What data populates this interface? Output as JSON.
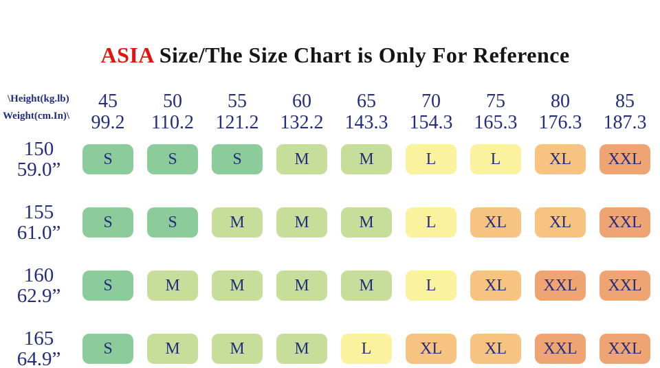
{
  "title": {
    "brand": "ASIA",
    "rest": " Size/The Size Chart is Only For Reference",
    "brand_color": "#e2140e",
    "rest_color": "#151515"
  },
  "table": {
    "corner": {
      "line1": "\\Height(kg.lb)",
      "line2": "Weight(cm.In)\\"
    },
    "weight_header": [
      {
        "kg": "45",
        "lb": "99.2"
      },
      {
        "kg": "50",
        "lb": "110.2"
      },
      {
        "kg": "55",
        "lb": "121.2"
      },
      {
        "kg": "60",
        "lb": "132.2"
      },
      {
        "kg": "65",
        "lb": "143.3"
      },
      {
        "kg": "70",
        "lb": "154.3"
      },
      {
        "kg": "75",
        "lb": "165.3"
      },
      {
        "kg": "80",
        "lb": "176.3"
      },
      {
        "kg": "85",
        "lb": "187.3"
      }
    ],
    "rows": [
      {
        "cm": "150",
        "inch": "59.0”",
        "sizes": [
          "S",
          "S",
          "S",
          "M",
          "M",
          "L",
          "L",
          "XL",
          "XXL"
        ]
      },
      {
        "cm": "155",
        "inch": "61.0”",
        "sizes": [
          "S",
          "S",
          "M",
          "M",
          "M",
          "L",
          "XL",
          "XL",
          "XXL"
        ]
      },
      {
        "cm": "160",
        "inch": "62.9”",
        "sizes": [
          "S",
          "M",
          "M",
          "M",
          "M",
          "L",
          "XL",
          "XXL",
          "XXL"
        ]
      },
      {
        "cm": "165",
        "inch": "64.9”",
        "sizes": [
          "S",
          "M",
          "M",
          "M",
          "L",
          "XL",
          "XL",
          "XXL",
          "XXL"
        ]
      }
    ],
    "size_colors": {
      "S": "#8ccb9a",
      "M": "#c6de99",
      "L": "#faf29d",
      "XL": "#f6c380",
      "XXL": "#efa473"
    },
    "text_color": "#232d7d"
  },
  "chart_data": {
    "type": "table",
    "title": "ASIA Size/The Size Chart is Only For Reference",
    "column_axis": "Weight (kg / lb)",
    "row_axis": "Height (cm / inch)",
    "weight_kg": [
      45,
      50,
      55,
      60,
      65,
      70,
      75,
      80,
      85
    ],
    "weight_lb": [
      99.2,
      110.2,
      121.2,
      132.2,
      143.3,
      154.3,
      165.3,
      176.3,
      187.3
    ],
    "height_cm": [
      150,
      155,
      160,
      165
    ],
    "height_in": [
      59.0,
      61.0,
      62.9,
      64.9
    ],
    "sizes": [
      [
        "S",
        "S",
        "S",
        "M",
        "M",
        "L",
        "L",
        "XL",
        "XXL"
      ],
      [
        "S",
        "S",
        "M",
        "M",
        "M",
        "L",
        "XL",
        "XL",
        "XXL"
      ],
      [
        "S",
        "M",
        "M",
        "M",
        "M",
        "L",
        "XL",
        "XXL",
        "XXL"
      ],
      [
        "S",
        "M",
        "M",
        "M",
        "L",
        "XL",
        "XL",
        "XXL",
        "XXL"
      ]
    ],
    "legend": "cell color encodes size: S green, M yellow-green, L yellow, XL light orange, XXL orange"
  }
}
